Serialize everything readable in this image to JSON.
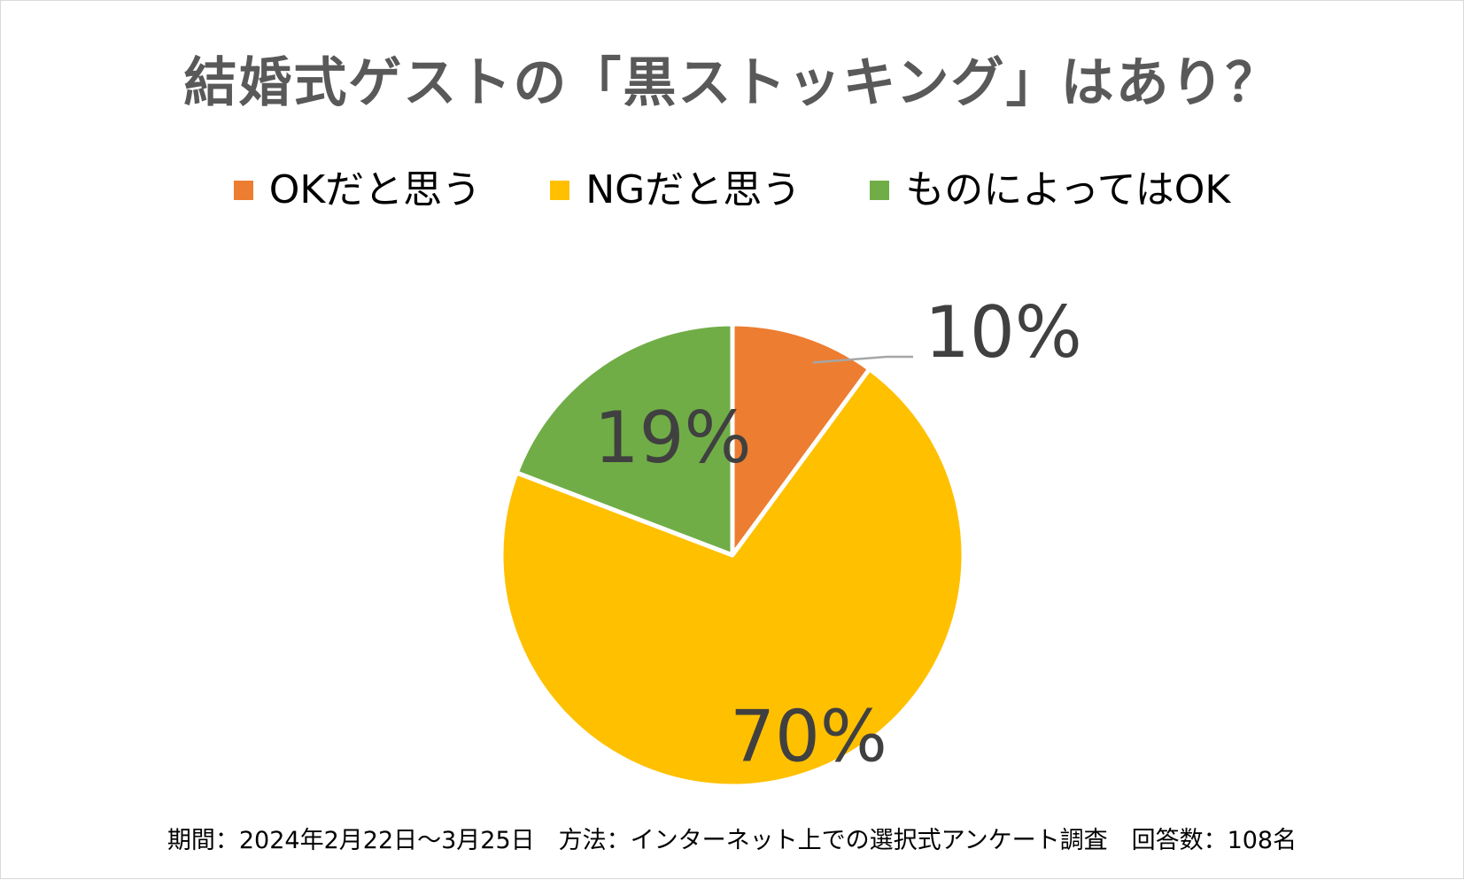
{
  "chart_data": {
    "type": "pie",
    "title": "結婚式ゲストの「黒ストッキング」はあり？",
    "categories": [
      "OKだと思う",
      "NGだと思う",
      "ものによってはOK"
    ],
    "values": [
      10,
      70,
      19
    ],
    "data_labels": [
      "10%",
      "70%",
      "19%"
    ],
    "colors": [
      "#ED7D31",
      "#FFC000",
      "#70AD47"
    ],
    "legend_position": "top"
  },
  "footer_note": "期間：2024年2月22日～3月25日　方法：インターネット上での選択式アンケート調査　回答数：108名"
}
